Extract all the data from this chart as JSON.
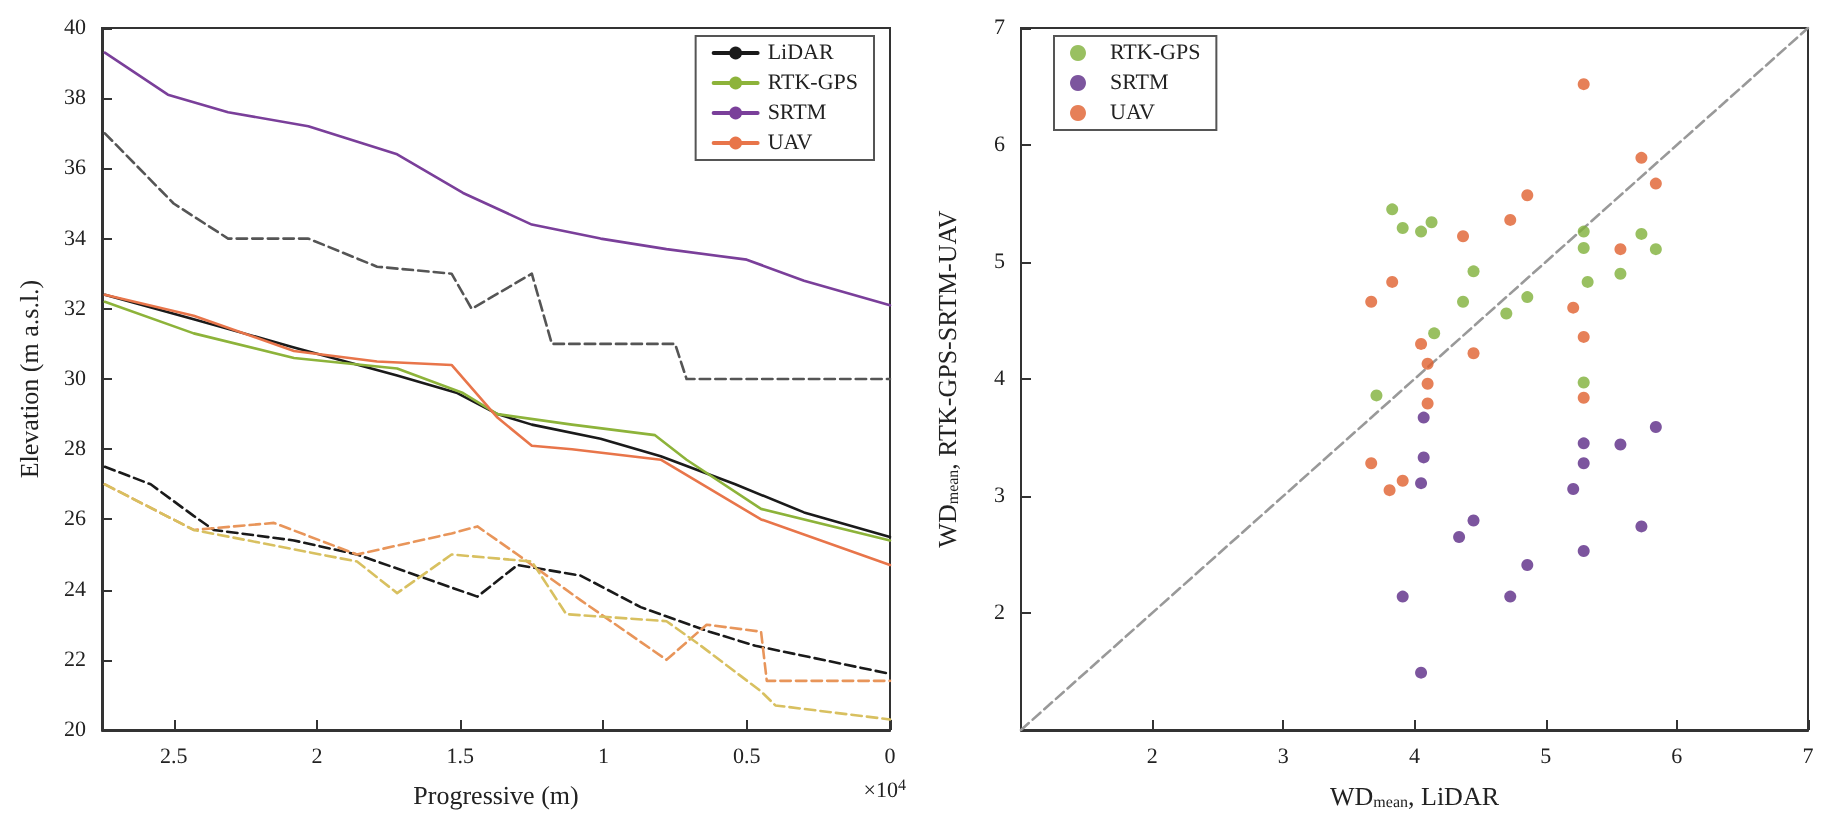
{
  "chart_data": [
    {
      "type": "line",
      "xlabel": "Progressive (m)",
      "ylabel": "Elevation (m a.s.l.)",
      "annotations": [
        "×10$^{4}$"
      ],
      "xlim": [
        2.75,
        0
      ],
      "xticks": [
        2.5,
        2,
        1.5,
        1,
        0.5,
        0
      ],
      "ylim": [
        20,
        40
      ],
      "yticks": [
        20,
        22,
        24,
        26,
        28,
        30,
        32,
        34,
        36,
        38,
        40
      ],
      "grid": false,
      "legend": "top right",
      "marker": "none",
      "line_style": "solid",
      "series": [
        {
          "name": "LiDAR",
          "color": "#1a1a1a",
          "x": [
            2.74,
            2.43,
            2.08,
            1.72,
            1.51,
            1.37,
            1.25,
            1.01,
            0.8,
            0.54,
            0.3,
            0
          ],
          "values": [
            32.4,
            31.7,
            30.9,
            30.1,
            29.6,
            29.0,
            28.7,
            28.3,
            27.8,
            27.0,
            26.2,
            25.5
          ]
        },
        {
          "name": "RTK-GPS",
          "color": "#8db33a",
          "x": [
            2.74,
            2.43,
            2.08,
            1.72,
            1.49,
            1.37,
            1.11,
            0.82,
            0.71,
            0.45,
            0
          ],
          "values": [
            32.2,
            31.3,
            30.6,
            30.3,
            29.6,
            29.0,
            28.7,
            28.4,
            27.7,
            26.3,
            25.4
          ]
        },
        {
          "name": "SRTM",
          "color": "#7a3f9a",
          "x": [
            2.74,
            2.52,
            2.31,
            2.03,
            1.72,
            1.49,
            1.25,
            1.01,
            0.78,
            0.5,
            0.3,
            0
          ],
          "values": [
            39.3,
            38.1,
            37.6,
            37.2,
            36.4,
            35.3,
            34.4,
            34.0,
            33.7,
            33.4,
            32.8,
            32.1
          ]
        },
        {
          "name": "UAV",
          "color": "#e8754a",
          "x": [
            2.74,
            2.43,
            2.08,
            1.79,
            1.53,
            1.37,
            1.25,
            1.11,
            0.8,
            0.45,
            0
          ],
          "values": [
            32.4,
            31.8,
            30.8,
            30.5,
            30.4,
            28.9,
            28.1,
            28.0,
            27.7,
            26.0,
            24.7
          ]
        },
        {
          "color": "#555555",
          "line_style": "dashed",
          "x": [
            2.74,
            2.5,
            2.31,
            2.03,
            1.79,
            1.53,
            1.46,
            1.25,
            1.18,
            0.75,
            0.71,
            0
          ],
          "values": [
            37.0,
            35.0,
            34.0,
            34.0,
            33.2,
            33.0,
            32.0,
            33.0,
            31.0,
            31.0,
            30.0,
            30.0
          ]
        },
        {
          "color": "#1a1a1a",
          "line_style": "dashed",
          "x": [
            2.74,
            2.58,
            2.43,
            2.36,
            2.08,
            1.86,
            1.72,
            1.44,
            1.3,
            1.08,
            0.87,
            0.63,
            0.47,
            0
          ],
          "values": [
            27.5,
            27.0,
            26.1,
            25.7,
            25.4,
            25.0,
            24.6,
            23.8,
            24.7,
            24.4,
            23.5,
            22.8,
            22.4,
            21.6
          ]
        },
        {
          "color": "#e8955a",
          "line_style": "dashed",
          "x": [
            2.74,
            2.43,
            2.15,
            1.86,
            1.53,
            1.44,
            1.3,
            1.08,
            0.78,
            0.64,
            0.45,
            0.43,
            0
          ],
          "values": [
            27.0,
            25.7,
            25.9,
            25.0,
            25.6,
            25.8,
            25.0,
            23.7,
            22.0,
            23.0,
            22.8,
            21.4,
            21.4
          ]
        },
        {
          "color": "#d8c060",
          "line_style": "dashed",
          "x": [
            2.74,
            2.43,
            1.86,
            1.72,
            1.53,
            1.25,
            1.13,
            0.78,
            0.66,
            0.45,
            0.4,
            0
          ],
          "values": [
            27.0,
            25.7,
            24.8,
            23.9,
            25.0,
            24.8,
            23.3,
            23.1,
            22.4,
            21.1,
            20.7,
            20.3
          ]
        }
      ]
    },
    {
      "type": "scatter",
      "xlabel": "WD$_{mean}$, LiDAR",
      "ylabel": "WD$_{mean}$, RTK-GPS-SRTM-UAV",
      "xlim": [
        1,
        7
      ],
      "xticks": [
        2,
        3,
        4,
        5,
        6,
        7
      ],
      "ylim": [
        1,
        7
      ],
      "yticks": [
        2,
        3,
        4,
        5,
        6,
        7
      ],
      "grid": false,
      "legend": "top left",
      "marker": "circle",
      "series": [
        {
          "name": "RTK-GPS",
          "color": "#7fb03a",
          "x": [
            3.83,
            3.91,
            4.05,
            4.13,
            4.45,
            4.37,
            4.7,
            4.86,
            5.29,
            5.29,
            5.32,
            5.57,
            5.73,
            5.84,
            3.71,
            4.15,
            5.29
          ],
          "values": [
            5.45,
            5.29,
            5.26,
            5.34,
            4.92,
            4.66,
            4.56,
            4.7,
            5.26,
            5.12,
            4.83,
            4.9,
            5.24,
            5.11,
            3.86,
            4.39,
            3.97
          ]
        },
        {
          "name": "SRTM",
          "color": "#5b2a86",
          "x": [
            4.07,
            4.07,
            4.05,
            3.91,
            4.05,
            4.34,
            4.45,
            4.73,
            4.86,
            5.21,
            5.29,
            5.29,
            5.29,
            5.57,
            5.73,
            5.84
          ],
          "values": [
            3.67,
            3.33,
            3.11,
            2.14,
            1.49,
            2.65,
            2.79,
            2.14,
            2.41,
            3.06,
            3.45,
            3.28,
            2.53,
            3.44,
            2.74,
            3.59
          ]
        },
        {
          "name": "UAV",
          "color": "#e0602e",
          "x": [
            5.29,
            5.73,
            5.84,
            4.86,
            4.73,
            4.37,
            3.83,
            3.67,
            5.21,
            5.29,
            5.57,
            4.05,
            4.45,
            4.1,
            4.1,
            5.29,
            3.67,
            3.81,
            3.91,
            4.1
          ],
          "values": [
            6.52,
            5.89,
            5.67,
            5.57,
            5.36,
            5.22,
            4.83,
            4.66,
            4.61,
            4.36,
            5.11,
            4.3,
            4.22,
            4.13,
            3.96,
            3.84,
            3.28,
            3.05,
            3.13,
            3.79
          ]
        },
        {
          "type": "line",
          "color": "#999999",
          "line_style": "dashed",
          "marker": "none",
          "x": [
            1,
            7
          ],
          "values": [
            1,
            7
          ]
        }
      ]
    }
  ]
}
